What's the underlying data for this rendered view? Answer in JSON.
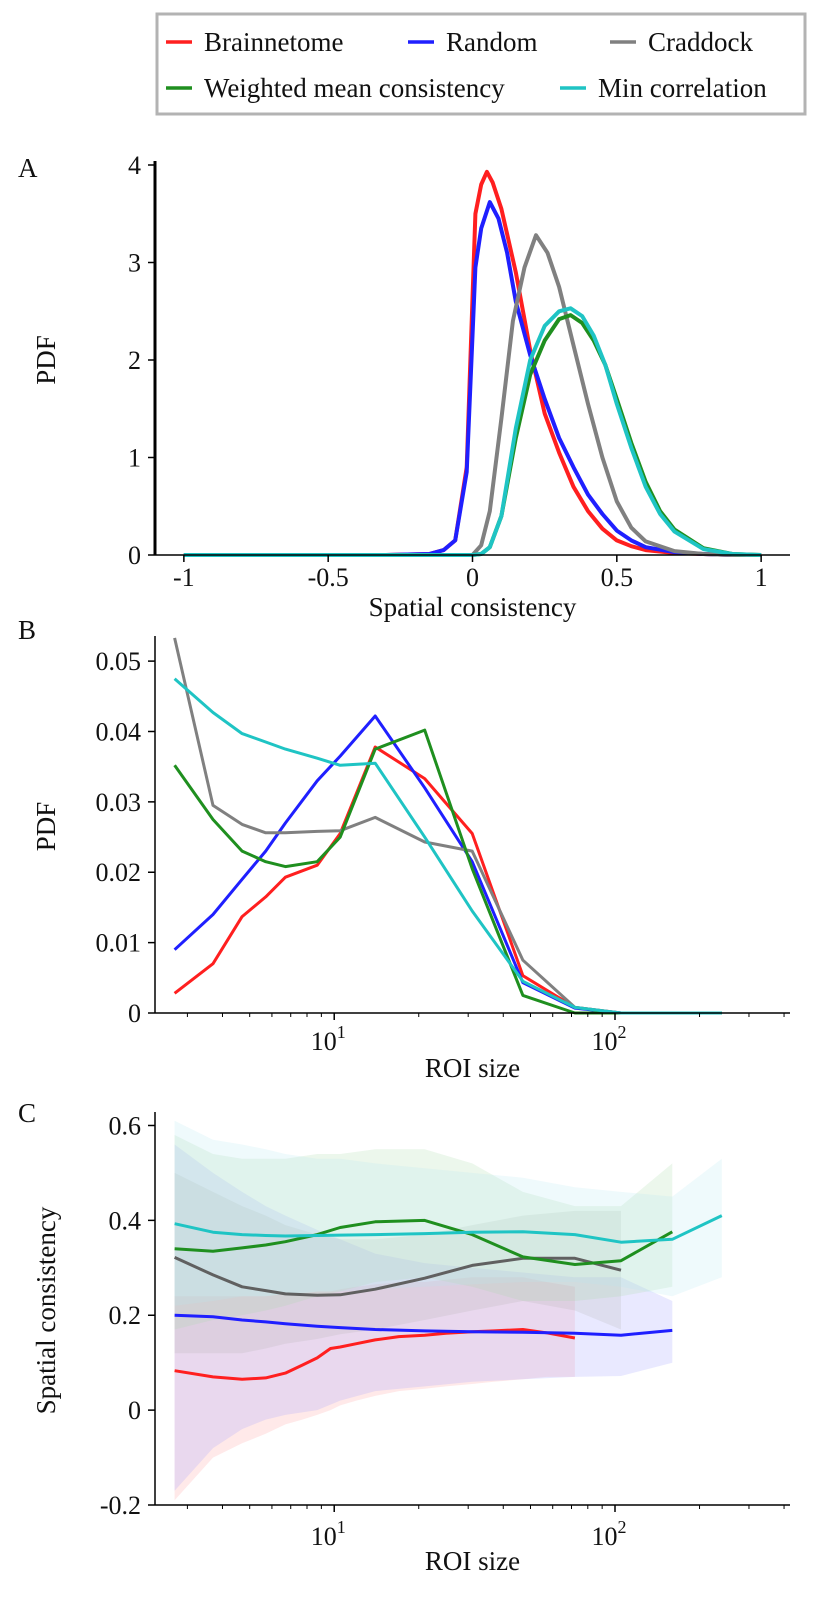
{
  "legend": {
    "items": [
      {
        "label": "Brainnetome",
        "color": "#ff1f1f"
      },
      {
        "label": "Random",
        "color": "#1f1fff"
      },
      {
        "label": "Craddock",
        "color": "#808080"
      },
      {
        "label": "Weighted mean consistency",
        "color": "#1f8f1f"
      },
      {
        "label": "Min correlation",
        "color": "#1fc4c4"
      }
    ]
  },
  "chart_data": [
    {
      "panel_label": "A",
      "type": "line",
      "xlabel": "Spatial consistency",
      "ylabel": "PDF",
      "xlim": [
        -1.1,
        1.1
      ],
      "ylim": [
        0,
        4
      ],
      "xticks": [
        {
          "value": -1,
          "label": "-1"
        },
        {
          "value": -0.5,
          "label": "-0.5"
        },
        {
          "value": 0,
          "label": "0"
        },
        {
          "value": 0.5,
          "label": "0.5"
        },
        {
          "value": 1,
          "label": "1"
        }
      ],
      "yticks": [
        {
          "value": 0,
          "label": "0"
        },
        {
          "value": 1,
          "label": "1"
        },
        {
          "value": 2,
          "label": "2"
        },
        {
          "value": 3,
          "label": "3"
        },
        {
          "value": 4,
          "label": "4"
        }
      ],
      "series": [
        {
          "name": "Brainnetome",
          "color": "#ff1f1f",
          "x": [
            -1,
            -0.3,
            -0.15,
            -0.1,
            -0.06,
            -0.02,
            0.01,
            0.03,
            0.05,
            0.07,
            0.1,
            0.15,
            0.2,
            0.25,
            0.3,
            0.35,
            0.4,
            0.45,
            0.5,
            0.55,
            0.6,
            0.7,
            0.8,
            0.9,
            1.0
          ],
          "y": [
            0,
            0,
            0.01,
            0.05,
            0.15,
            0.9,
            3.5,
            3.8,
            3.93,
            3.82,
            3.55,
            2.9,
            2.1,
            1.45,
            1.05,
            0.7,
            0.45,
            0.27,
            0.15,
            0.09,
            0.05,
            0.02,
            0.01,
            0,
            0
          ]
        },
        {
          "name": "Random",
          "color": "#1f1fff",
          "x": [
            -1,
            -0.3,
            -0.15,
            -0.1,
            -0.06,
            -0.02,
            0.01,
            0.03,
            0.06,
            0.09,
            0.12,
            0.15,
            0.2,
            0.25,
            0.3,
            0.35,
            0.4,
            0.45,
            0.5,
            0.55,
            0.6,
            0.7,
            0.8,
            0.9,
            1.0
          ],
          "y": [
            0,
            0,
            0.01,
            0.05,
            0.15,
            0.85,
            2.95,
            3.35,
            3.62,
            3.45,
            3.1,
            2.6,
            2.05,
            1.6,
            1.2,
            0.9,
            0.62,
            0.42,
            0.25,
            0.15,
            0.08,
            0.03,
            0.01,
            0,
            0
          ]
        },
        {
          "name": "Craddock",
          "color": "#808080",
          "x": [
            -1,
            0.0,
            0.03,
            0.06,
            0.1,
            0.14,
            0.18,
            0.22,
            0.26,
            0.3,
            0.35,
            0.4,
            0.45,
            0.5,
            0.55,
            0.6,
            0.7,
            0.8,
            0.9,
            1.0
          ],
          "y": [
            0,
            0,
            0.1,
            0.45,
            1.4,
            2.4,
            2.95,
            3.28,
            3.1,
            2.75,
            2.15,
            1.55,
            1.0,
            0.55,
            0.28,
            0.14,
            0.04,
            0.01,
            0,
            0
          ]
        },
        {
          "name": "Weighted mean consistency",
          "color": "#1f8f1f",
          "x": [
            -1,
            0.0,
            0.03,
            0.06,
            0.1,
            0.15,
            0.2,
            0.25,
            0.3,
            0.34,
            0.38,
            0.42,
            0.46,
            0.5,
            0.55,
            0.6,
            0.65,
            0.7,
            0.8,
            0.9,
            1.0
          ],
          "y": [
            0,
            0,
            0.01,
            0.08,
            0.4,
            1.2,
            1.85,
            2.2,
            2.42,
            2.46,
            2.38,
            2.2,
            1.95,
            1.6,
            1.15,
            0.75,
            0.45,
            0.26,
            0.07,
            0.01,
            0
          ]
        },
        {
          "name": "Min correlation",
          "color": "#1fc4c4",
          "x": [
            -1,
            0.0,
            0.03,
            0.06,
            0.1,
            0.15,
            0.2,
            0.25,
            0.3,
            0.34,
            0.38,
            0.42,
            0.46,
            0.5,
            0.55,
            0.6,
            0.65,
            0.7,
            0.8,
            0.9,
            1.0
          ],
          "y": [
            0,
            0,
            0.01,
            0.08,
            0.4,
            1.3,
            2.0,
            2.35,
            2.5,
            2.53,
            2.45,
            2.25,
            1.95,
            1.55,
            1.1,
            0.7,
            0.42,
            0.24,
            0.06,
            0.01,
            0
          ]
        }
      ]
    },
    {
      "panel_label": "B",
      "type": "line",
      "xscale": "log",
      "xlabel": "ROI size",
      "ylabel": "PDF",
      "xlim": [
        2.3,
        420
      ],
      "ylim": [
        0,
        0.053
      ],
      "xticks": [
        {
          "value": 10,
          "label": "10",
          "exp": "1"
        },
        {
          "value": 100,
          "label": "10",
          "exp": "2"
        }
      ],
      "yticks": [
        {
          "value": 0,
          "label": "0"
        },
        {
          "value": 0.01,
          "label": "0.01"
        },
        {
          "value": 0.02,
          "label": "0.02"
        },
        {
          "value": 0.03,
          "label": "0.03"
        },
        {
          "value": 0.04,
          "label": "0.04"
        },
        {
          "value": 0.05,
          "label": "0.05"
        }
      ],
      "series": [
        {
          "name": "Brainnetome",
          "color": "#ff1f1f",
          "x": [
            2.7,
            3.7,
            4.7,
            5.7,
            6.7,
            8.7,
            10.5,
            14,
            21,
            31,
            47,
            72,
            105,
            160,
            240
          ],
          "y": [
            0.0028,
            0.007,
            0.0137,
            0.0165,
            0.0193,
            0.021,
            0.0255,
            0.0378,
            0.0333,
            0.0255,
            0.0053,
            0.0008,
            0,
            0,
            0
          ]
        },
        {
          "name": "Random",
          "color": "#1f1fff",
          "x": [
            2.7,
            3.7,
            4.7,
            5.7,
            6.7,
            8.7,
            10.5,
            14,
            21,
            31,
            47,
            72,
            105,
            160,
            240
          ],
          "y": [
            0.009,
            0.014,
            0.019,
            0.023,
            0.027,
            0.033,
            0.0365,
            0.0422,
            0.032,
            0.0215,
            0.0043,
            0.0007,
            0,
            0,
            0
          ]
        },
        {
          "name": "Craddock",
          "color": "#808080",
          "x": [
            2.7,
            3.7,
            4.7,
            5.7,
            6.7,
            8.7,
            10.5,
            14,
            21,
            31,
            47,
            72,
            105,
            160,
            240
          ],
          "y": [
            0.0533,
            0.0295,
            0.0268,
            0.0256,
            0.0256,
            0.0258,
            0.0259,
            0.0278,
            0.0243,
            0.023,
            0.0075,
            0.0008,
            0,
            0,
            0
          ]
        },
        {
          "name": "Weighted mean consistency",
          "color": "#1f8f1f",
          "x": [
            2.7,
            3.7,
            4.7,
            5.7,
            6.7,
            8.7,
            10.5,
            14,
            21,
            31,
            47,
            72,
            105,
            160,
            240
          ],
          "y": [
            0.0352,
            0.0275,
            0.023,
            0.0215,
            0.0208,
            0.0215,
            0.025,
            0.0375,
            0.0402,
            0.0205,
            0.0025,
            0,
            0,
            0,
            0
          ]
        },
        {
          "name": "Min correlation",
          "color": "#1fc4c4",
          "x": [
            2.7,
            3.7,
            4.7,
            5.7,
            6.7,
            8.7,
            10.5,
            14,
            21,
            31,
            47,
            72,
            105,
            160,
            240
          ],
          "y": [
            0.0475,
            0.0427,
            0.0397,
            0.0385,
            0.0375,
            0.0362,
            0.0352,
            0.0355,
            0.025,
            0.0145,
            0.0045,
            0.0008,
            0,
            0,
            0
          ]
        }
      ]
    },
    {
      "panel_label": "C",
      "type": "line",
      "xscale": "log",
      "xlabel": "ROI size",
      "ylabel": "Spatial consistency",
      "xlim": [
        2.3,
        420
      ],
      "ylim": [
        -0.2,
        0.62
      ],
      "xticks": [
        {
          "value": 10,
          "label": "10",
          "exp": "1"
        },
        {
          "value": 100,
          "label": "10",
          "exp": "2"
        }
      ],
      "yticks": [
        {
          "value": -0.2,
          "label": "-0.2"
        },
        {
          "value": 0,
          "label": "0"
        },
        {
          "value": 0.2,
          "label": "0.2"
        },
        {
          "value": 0.4,
          "label": "0.4"
        },
        {
          "value": 0.6,
          "label": "0.6"
        }
      ],
      "series": [
        {
          "name": "Brainnetome",
          "color": "#ff1f1f",
          "band_color": "#ff9a9a",
          "x": [
            2.7,
            3.7,
            4.7,
            5.7,
            6.7,
            7.7,
            8.7,
            9.7,
            10.5,
            12,
            14,
            17,
            21,
            25,
            31,
            37,
            47,
            57,
            72
          ],
          "y": [
            0.083,
            0.07,
            0.065,
            0.068,
            0.078,
            0.095,
            0.11,
            0.13,
            0.133,
            0.14,
            0.148,
            0.155,
            0.158,
            0.162,
            0.165,
            0.167,
            0.17,
            0.163,
            0.152
          ],
          "lower": [
            -0.19,
            -0.1,
            -0.07,
            -0.05,
            -0.03,
            -0.02,
            -0.01,
            0.0,
            0.01,
            0.02,
            0.03,
            0.04,
            0.045,
            0.05,
            0.055,
            0.06,
            0.065,
            0.07,
            0.07
          ],
          "upper": [
            0.24,
            0.24,
            0.24,
            0.24,
            0.245,
            0.245,
            0.25,
            0.25,
            0.255,
            0.26,
            0.265,
            0.27,
            0.27,
            0.275,
            0.28,
            0.28,
            0.28,
            0.27,
            0.26
          ]
        },
        {
          "name": "Random",
          "color": "#1f1fff",
          "band_color": "#9a9aff",
          "x": [
            2.7,
            3.7,
            4.7,
            5.7,
            6.7,
            8.7,
            10.5,
            14,
            21,
            31,
            47,
            72,
            105,
            160
          ],
          "y": [
            0.2,
            0.197,
            0.19,
            0.186,
            0.182,
            0.177,
            0.174,
            0.17,
            0.167,
            0.165,
            0.164,
            0.162,
            0.158,
            0.168
          ],
          "lower": [
            -0.17,
            -0.08,
            -0.04,
            -0.02,
            -0.01,
            0.0,
            0.02,
            0.04,
            0.05,
            0.06,
            0.065,
            0.07,
            0.072,
            0.1
          ],
          "upper": [
            0.56,
            0.5,
            0.46,
            0.43,
            0.41,
            0.38,
            0.36,
            0.33,
            0.31,
            0.3,
            0.29,
            0.28,
            0.28,
            0.23
          ]
        },
        {
          "name": "Craddock",
          "color": "#606060",
          "band_color": "#b0b0b0",
          "x": [
            2.7,
            3.7,
            4.7,
            5.7,
            6.7,
            8.7,
            10.5,
            14,
            21,
            31,
            47,
            72,
            105
          ],
          "y": [
            0.322,
            0.285,
            0.26,
            0.252,
            0.245,
            0.242,
            0.243,
            0.255,
            0.278,
            0.305,
            0.32,
            0.32,
            0.295
          ],
          "lower": [
            0.12,
            0.12,
            0.12,
            0.13,
            0.14,
            0.15,
            0.16,
            0.17,
            0.19,
            0.21,
            0.23,
            0.21,
            0.17
          ],
          "upper": [
            0.5,
            0.46,
            0.43,
            0.41,
            0.39,
            0.37,
            0.36,
            0.36,
            0.37,
            0.39,
            0.41,
            0.42,
            0.42
          ]
        },
        {
          "name": "Weighted mean consistency",
          "color": "#1f8f1f",
          "band_color": "#a8dca8",
          "x": [
            2.7,
            3.7,
            4.7,
            5.7,
            6.7,
            8.7,
            10.5,
            14,
            21,
            31,
            47,
            72,
            105,
            160
          ],
          "y": [
            0.34,
            0.335,
            0.342,
            0.348,
            0.355,
            0.37,
            0.385,
            0.397,
            0.4,
            0.37,
            0.323,
            0.307,
            0.315,
            0.376
          ],
          "lower": [
            0.17,
            0.19,
            0.2,
            0.21,
            0.22,
            0.24,
            0.25,
            0.27,
            0.28,
            0.26,
            0.23,
            0.23,
            0.24,
            0.26
          ],
          "upper": [
            0.58,
            0.54,
            0.53,
            0.53,
            0.53,
            0.54,
            0.54,
            0.55,
            0.55,
            0.52,
            0.46,
            0.43,
            0.43,
            0.52
          ]
        },
        {
          "name": "Min correlation",
          "color": "#1fc4c4",
          "band_color": "#b4e8f0",
          "x": [
            2.7,
            3.7,
            4.7,
            5.7,
            6.7,
            8.7,
            10.5,
            14,
            21,
            31,
            47,
            72,
            105,
            160,
            240
          ],
          "y": [
            0.393,
            0.375,
            0.37,
            0.368,
            0.367,
            0.368,
            0.369,
            0.37,
            0.372,
            0.375,
            0.376,
            0.37,
            0.354,
            0.36,
            0.41
          ],
          "lower": [
            0.22,
            0.23,
            0.24,
            0.24,
            0.245,
            0.25,
            0.25,
            0.255,
            0.26,
            0.265,
            0.27,
            0.27,
            0.26,
            0.24,
            0.28
          ],
          "upper": [
            0.61,
            0.57,
            0.56,
            0.55,
            0.54,
            0.53,
            0.53,
            0.52,
            0.51,
            0.5,
            0.49,
            0.47,
            0.46,
            0.45,
            0.53
          ]
        }
      ]
    }
  ]
}
